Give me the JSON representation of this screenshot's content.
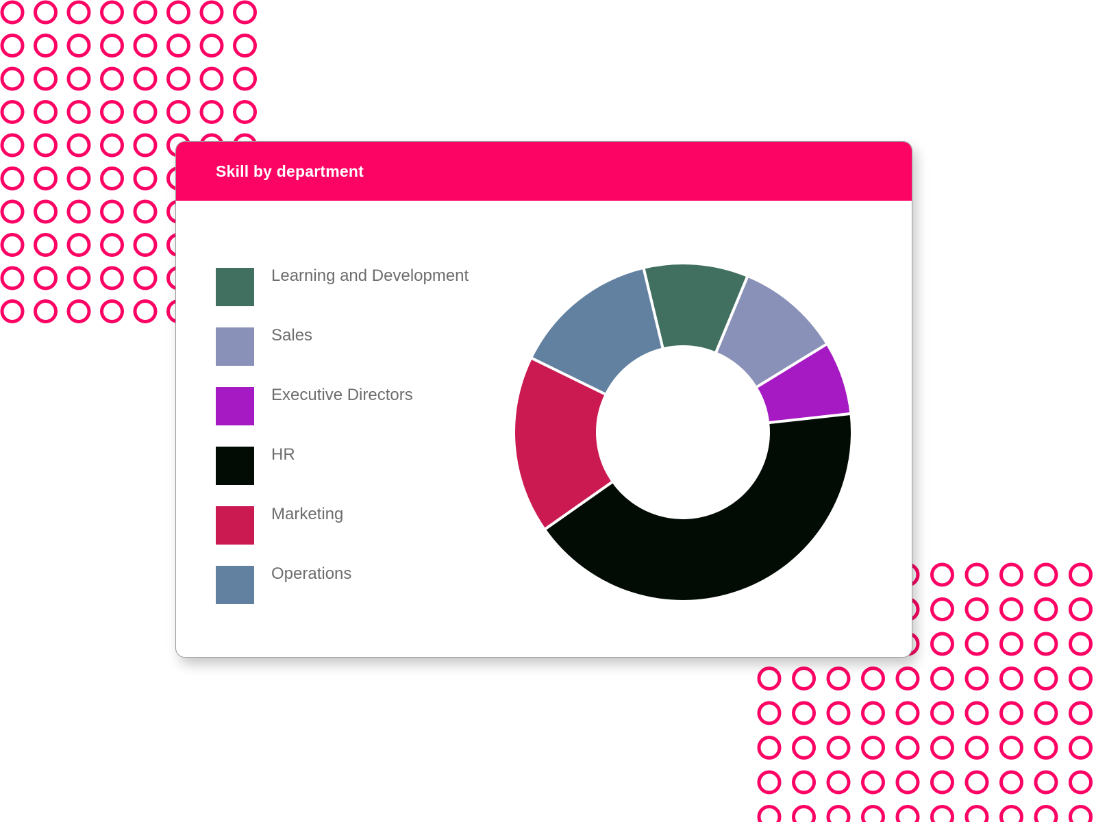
{
  "card": {
    "title": "Skill by department"
  },
  "colors": {
    "accent": "#fc0464",
    "card_background": "#ffffff",
    "label_text": "#6d6d6d"
  },
  "chart_data": {
    "type": "pie",
    "title": "Skill by department",
    "donut": true,
    "legend_position": "left",
    "series": [
      {
        "name": "Skill by department",
        "slices": [
          {
            "label": "Learning and Development",
            "value": 10,
            "color": "#417060"
          },
          {
            "label": "Sales",
            "value": 10,
            "color": "#8a91b8"
          },
          {
            "label": "Executive Directors",
            "value": 7,
            "color": "#a61ac4"
          },
          {
            "label": "HR",
            "value": 42,
            "color": "#020b04"
          },
          {
            "label": "Marketing",
            "value": 17,
            "color": "#cb1a52"
          },
          {
            "label": "Operations",
            "value": 14,
            "color": "#6281a0"
          }
        ]
      }
    ]
  }
}
